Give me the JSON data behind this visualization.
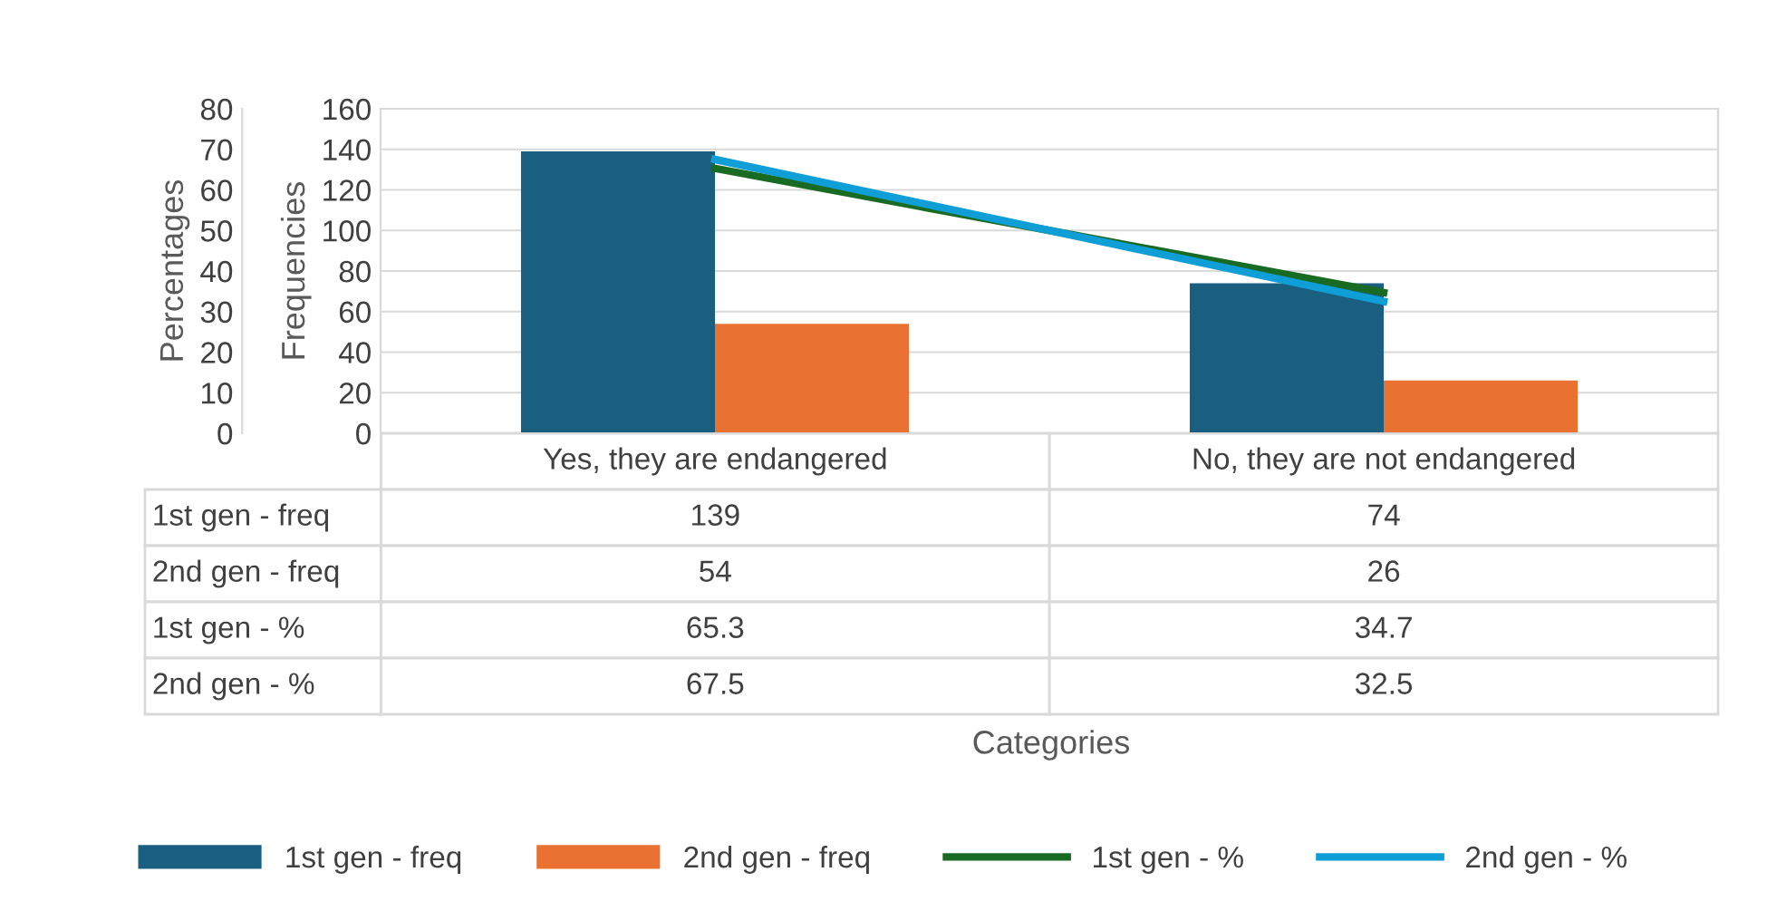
{
  "chart_data": {
    "type": "bar",
    "annotations": [
      "Categories"
    ],
    "ylabel": "Frequencies",
    "y2label": "Percentages",
    "categories": [
      "Yes, they are endangered",
      "No, they are not endangered"
    ],
    "series": [
      {
        "name": "1st gen - freq",
        "color": "#1a5e80",
        "values": [
          139,
          74
        ]
      },
      {
        "name": "2nd gen - freq",
        "color": "#e97132",
        "values": [
          54,
          26
        ]
      },
      {
        "name": "1st gen - %",
        "type": "line",
        "axis": "y2",
        "color": "#196b24",
        "values": [
          65.3,
          34.7
        ]
      },
      {
        "name": "2nd gen - %",
        "type": "line",
        "axis": "y2",
        "color": "#0f9ed5",
        "values": [
          67.5,
          32.5
        ]
      }
    ],
    "ylim": [
      0,
      160
    ],
    "yticks": [
      0,
      20,
      40,
      60,
      80,
      100,
      120,
      140,
      160
    ],
    "y2lim": [
      0,
      80
    ],
    "y2ticks": [
      0,
      10,
      20,
      30,
      40,
      50,
      60,
      70,
      80
    ],
    "grid": "y",
    "legend": "bottom",
    "data_labels": true,
    "marker": "none",
    "line_style": "solid"
  }
}
